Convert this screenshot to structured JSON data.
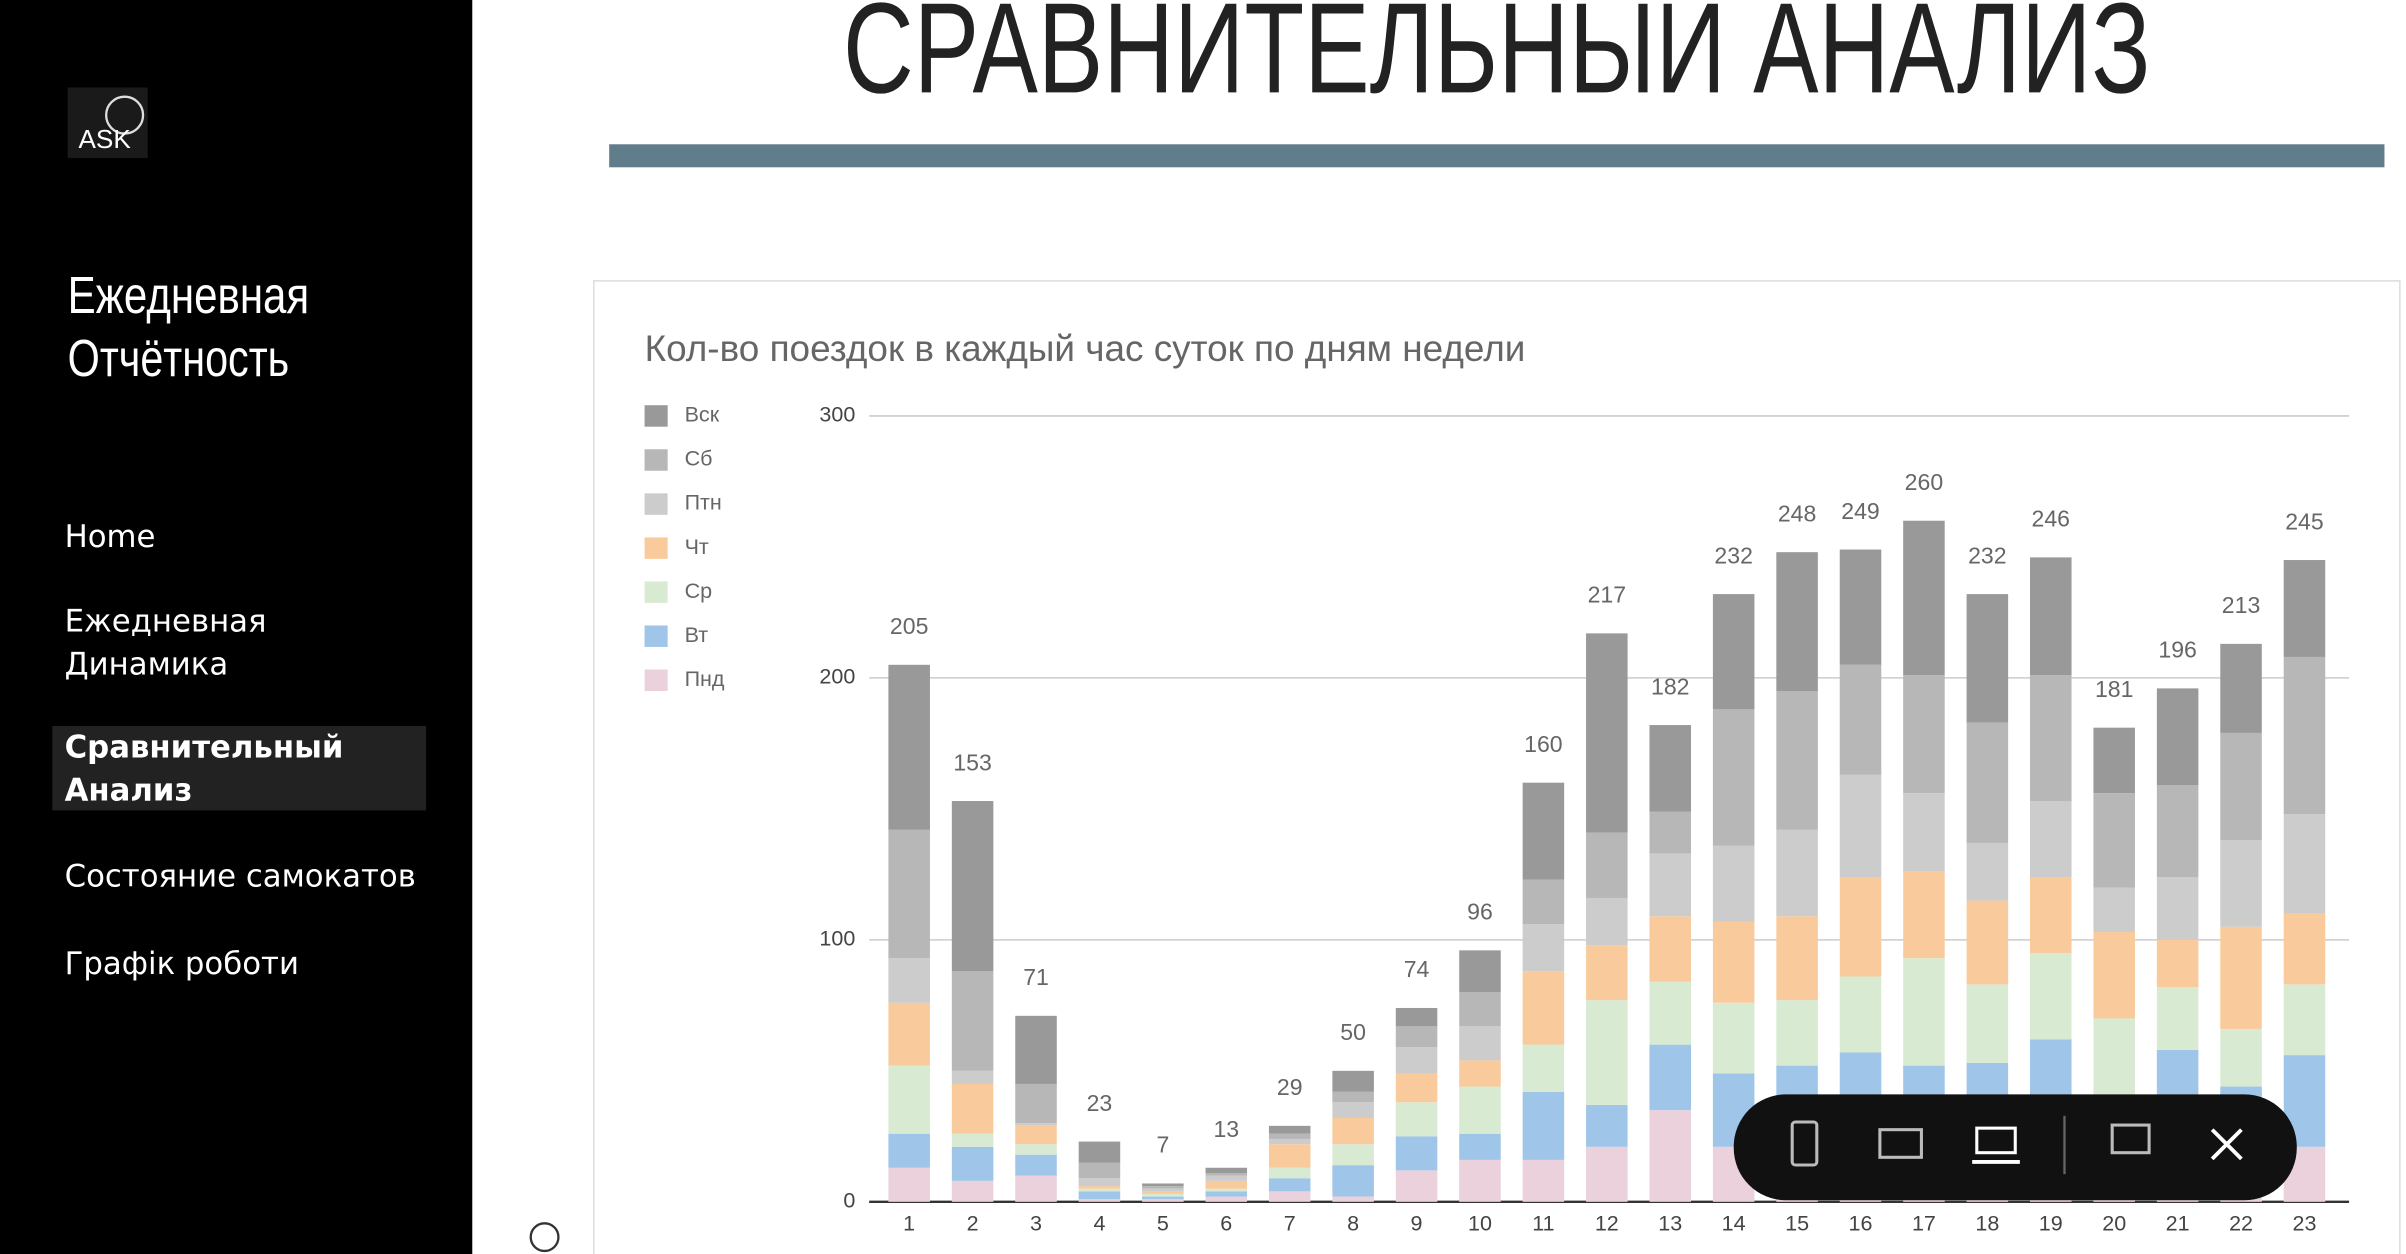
{
  "sidebar": {
    "logo": "ASK",
    "brand": [
      "Ежедневная",
      "Отчётность"
    ],
    "nav": [
      {
        "lines": [
          "Home"
        ]
      },
      {
        "lines": [
          "Ежедневная",
          "Динамика"
        ]
      },
      {
        "lines": [
          "Сравнительный",
          "Анализ"
        ]
      },
      {
        "lines": [
          "Состояние самокатов"
        ]
      },
      {
        "lines": [
          "Графік роботи"
        ]
      }
    ]
  },
  "header": {
    "title": "СРАВНИТЕЛЬНЫЙ АНАЛИЗ"
  },
  "chart_data": {
    "type": "stacked_bar",
    "title": "Кол-во поездок в каждый час суток по дням недели",
    "categories": [
      "1",
      "2",
      "3",
      "4",
      "5",
      "6",
      "7",
      "8",
      "9",
      "10",
      "11",
      "12",
      "13",
      "14",
      "15",
      "16",
      "17",
      "18",
      "19",
      "20",
      "21",
      "22",
      "23"
    ],
    "series": [
      {
        "name": "Пнд",
        "color": "#ead1dc",
        "values": [
          13,
          8,
          10,
          1,
          1,
          2,
          4,
          2,
          12,
          16,
          16,
          21,
          35,
          21,
          22,
          22,
          22,
          22,
          22,
          20,
          22,
          22,
          21
        ]
      },
      {
        "name": "Вт",
        "color": "#9fc5e8",
        "values": [
          13,
          13,
          8,
          3,
          1,
          2,
          5,
          12,
          13,
          10,
          26,
          16,
          25,
          28,
          30,
          35,
          30,
          31,
          40,
          20,
          36,
          22,
          35
        ]
      },
      {
        "name": "Ср",
        "color": "#d9ead3",
        "values": [
          26,
          5,
          4,
          1,
          1,
          1,
          4,
          8,
          13,
          18,
          18,
          40,
          24,
          27,
          25,
          29,
          41,
          30,
          33,
          30,
          24,
          22,
          27
        ]
      },
      {
        "name": "Чт",
        "color": "#f9cb9c",
        "values": [
          24,
          19,
          7,
          1,
          1,
          3,
          9,
          10,
          11,
          10,
          28,
          21,
          25,
          31,
          32,
          38,
          33,
          32,
          29,
          33,
          18,
          39,
          27
        ]
      },
      {
        "name": "Птн",
        "color": "#cccccc",
        "values": [
          17,
          5,
          1,
          3,
          1,
          2,
          2,
          6,
          10,
          13,
          18,
          18,
          24,
          29,
          33,
          39,
          30,
          22,
          29,
          17,
          24,
          33,
          38
        ]
      },
      {
        "name": "Сб",
        "color": "#b7b7b7",
        "values": [
          49,
          38,
          15,
          6,
          1,
          1,
          2,
          4,
          8,
          13,
          17,
          25,
          16,
          52,
          53,
          42,
          45,
          46,
          48,
          36,
          35,
          41,
          60
        ]
      },
      {
        "name": "Вск",
        "color": "#999999",
        "values": [
          63,
          65,
          26,
          8,
          1,
          2,
          3,
          8,
          7,
          16,
          37,
          76,
          33,
          44,
          53,
          44,
          59,
          49,
          45,
          25,
          37,
          34,
          37
        ]
      }
    ],
    "totals": [
      205,
      153,
      71,
      23,
      7,
      13,
      29,
      50,
      74,
      96,
      160,
      217,
      182,
      232,
      248,
      249,
      260,
      232,
      246,
      181,
      196,
      213,
      245
    ],
    "ylim": [
      0,
      300
    ],
    "yticks": [
      0,
      100,
      200,
      300
    ],
    "grid": true,
    "legend": "left"
  }
}
